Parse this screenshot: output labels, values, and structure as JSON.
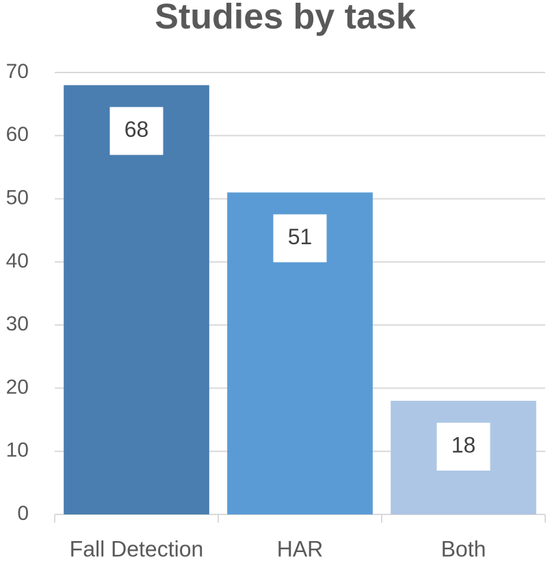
{
  "chart_data": {
    "type": "bar",
    "title": "Studies by task",
    "categories": [
      "Fall Detection",
      "HAR",
      "Both"
    ],
    "values": [
      68,
      51,
      18
    ],
    "colors": [
      "#4a7eb0",
      "#5b9bd5",
      "#adc6e5"
    ],
    "ylim": [
      0,
      70
    ],
    "yticks": [
      0,
      10,
      20,
      30,
      40,
      50,
      60,
      70
    ],
    "grid": true
  }
}
